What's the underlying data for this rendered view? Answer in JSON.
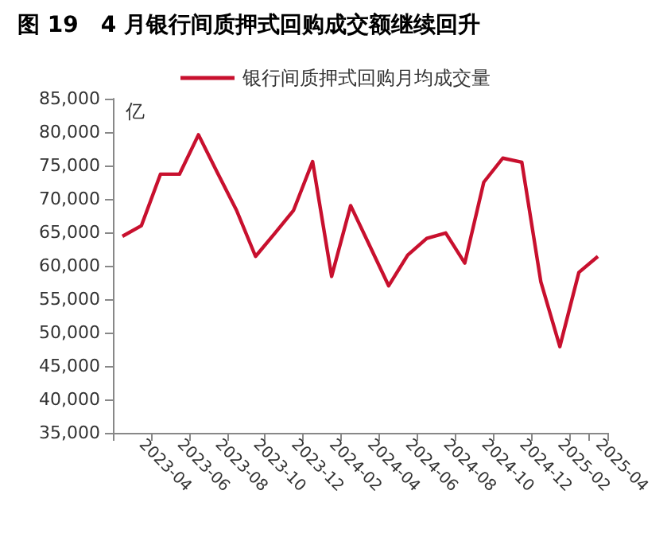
{
  "chart_data": {
    "type": "line",
    "title": "图 19　4 月银行间质押式回购成交额继续回升",
    "ylabel": "亿",
    "categories": [
      null,
      "2023-04",
      null,
      "2023-06",
      null,
      "2023-08",
      null,
      "2023-10",
      null,
      "2023-12",
      null,
      "2024-02",
      null,
      "2024-04",
      null,
      "2024-06",
      null,
      "2024-08",
      null,
      "2024-10",
      null,
      "2024-12",
      null,
      "2025-02",
      null,
      "2025-04"
    ],
    "series": [
      {
        "name": "银行间质押式回购月均成交量",
        "color": "#c8102e",
        "values": [
          64400,
          66000,
          73700,
          73700,
          79600,
          73900,
          68300,
          61400,
          64800,
          68300,
          75600,
          58400,
          69000,
          63000,
          57000,
          61600,
          64100,
          64900,
          60400,
          72500,
          76100,
          75500,
          57600,
          47900,
          59000,
          61400
        ]
      }
    ],
    "ylim": [
      35000,
      85000
    ],
    "yticks": [
      {
        "value": 35000,
        "label": "35,000"
      },
      {
        "value": 40000,
        "label": "40,000"
      },
      {
        "value": 45000,
        "label": "45,000"
      },
      {
        "value": 50000,
        "label": "50,000"
      },
      {
        "value": 55000,
        "label": "55,000"
      },
      {
        "value": 60000,
        "label": "60,000"
      },
      {
        "value": 65000,
        "label": "65,000"
      },
      {
        "value": 70000,
        "label": "70,000"
      },
      {
        "value": 75000,
        "label": "75,000"
      },
      {
        "value": 80000,
        "label": "80,000"
      },
      {
        "value": 85000,
        "label": "85,000"
      }
    ],
    "grid": false,
    "legend": "top",
    "marker": "none",
    "line_style": "solid"
  }
}
